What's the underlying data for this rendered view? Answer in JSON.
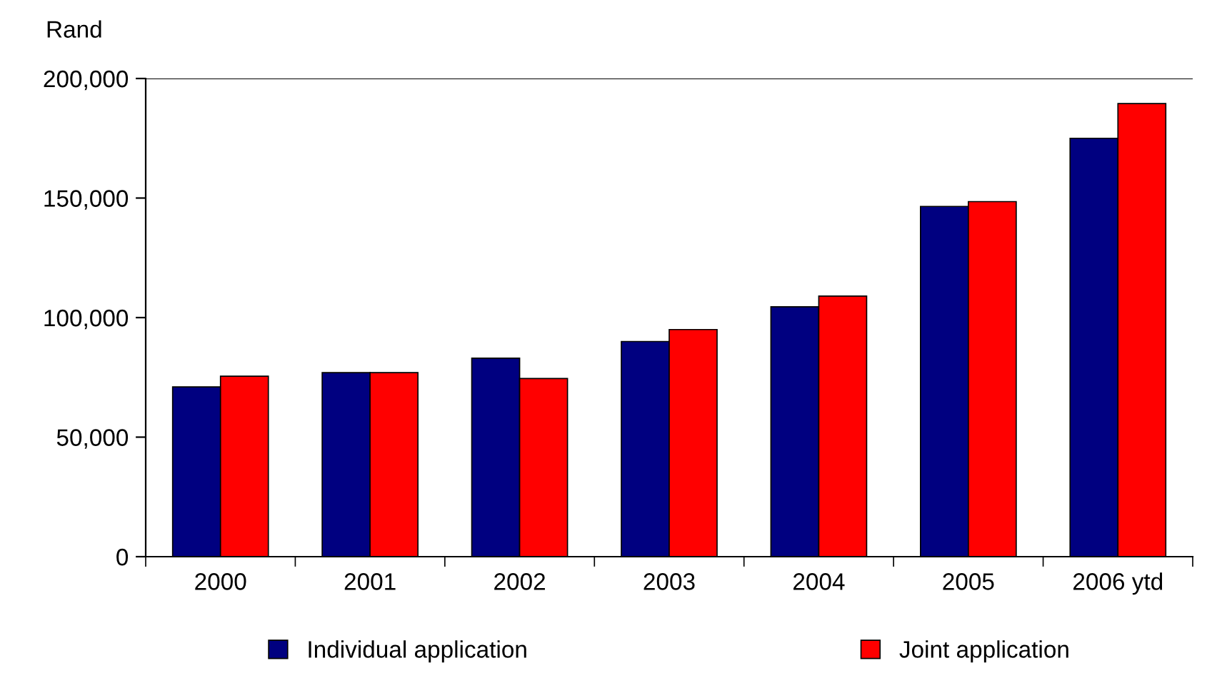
{
  "chart_data": {
    "type": "bar",
    "ylabel": "Rand",
    "categories": [
      "2000",
      "2001",
      "2002",
      "2003",
      "2004",
      "2005",
      "2006 ytd"
    ],
    "series": [
      {
        "name": "Individual application",
        "color": "#000080",
        "values": [
          71000,
          77000,
          83000,
          90000,
          104500,
          146500,
          175000
        ]
      },
      {
        "name": "Joint application",
        "color": "#ff0000",
        "values": [
          75500,
          77000,
          74500,
          95000,
          109000,
          148500,
          189500
        ]
      }
    ],
    "ylim": [
      0,
      200000
    ],
    "yticks": [
      {
        "value": 0,
        "label": "0"
      },
      {
        "value": 50000,
        "label": "50,000"
      },
      {
        "value": 100000,
        "label": "100,000"
      },
      {
        "value": 150000,
        "label": "150,000"
      },
      {
        "value": 200000,
        "label": "200,000"
      }
    ],
    "ref_lines": [
      {
        "axis": "y",
        "value": 200000,
        "color": "#000000"
      }
    ],
    "grid": false,
    "legend": "bottom"
  }
}
